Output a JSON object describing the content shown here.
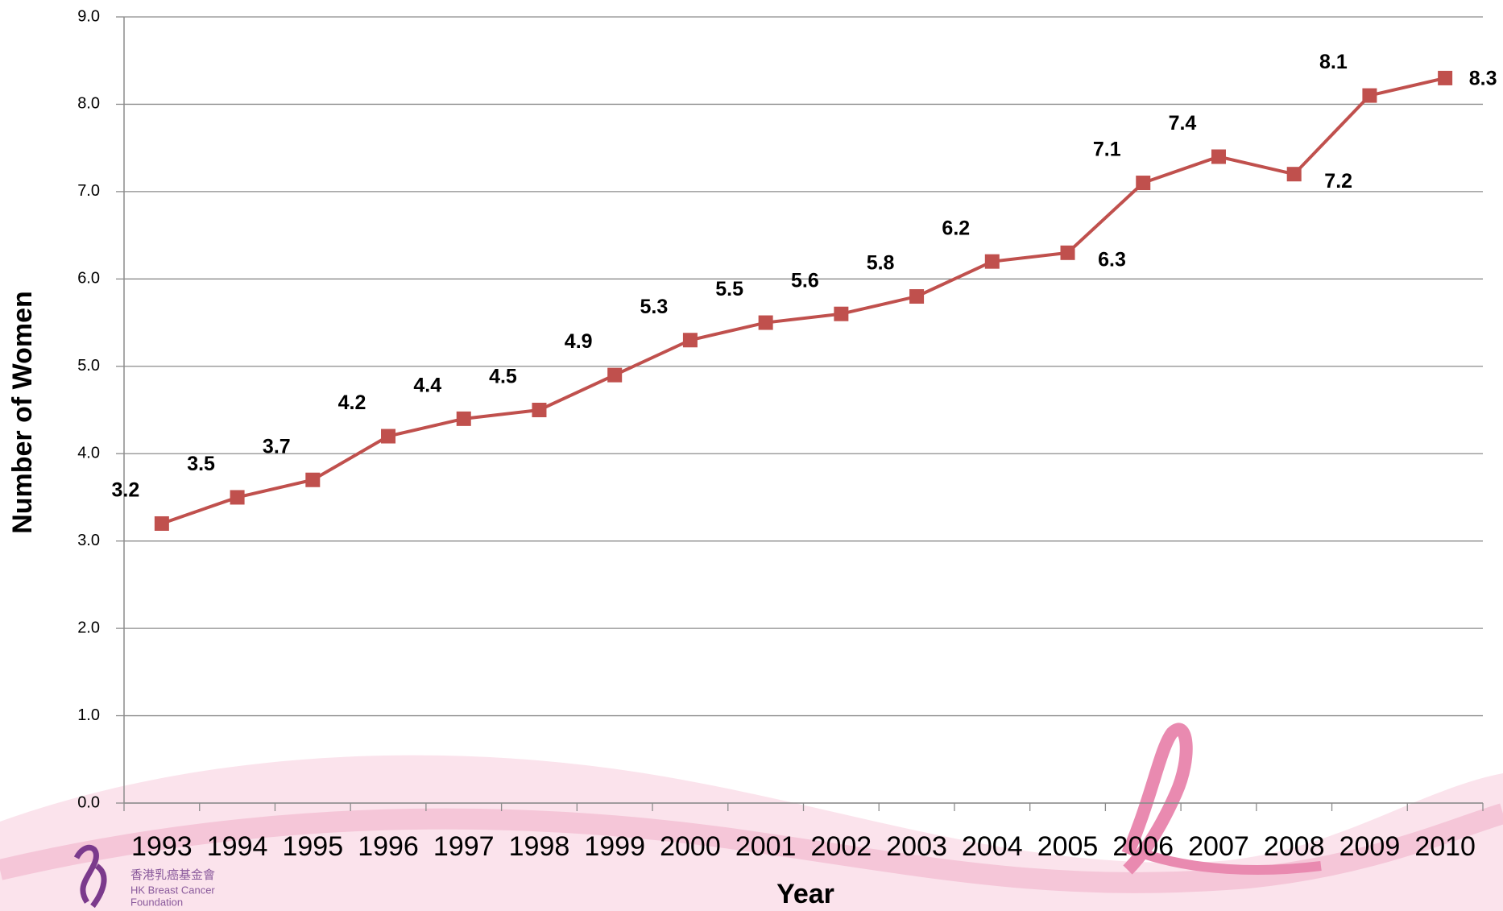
{
  "chart_data": {
    "type": "line",
    "x_label": "Year",
    "y_label": "Number of Women",
    "categories": [
      "1993",
      "1994",
      "1995",
      "1996",
      "1997",
      "1998",
      "1999",
      "2000",
      "2001",
      "2002",
      "2003",
      "2004",
      "2005",
      "2006",
      "2007",
      "2008",
      "2009",
      "2010"
    ],
    "series": [
      {
        "name": "Number of Women",
        "color": "#c0504d",
        "values": [
          3.2,
          3.5,
          3.7,
          4.2,
          4.4,
          4.5,
          4.9,
          5.3,
          5.5,
          5.6,
          5.8,
          6.2,
          6.3,
          7.1,
          7.4,
          7.2,
          8.1,
          8.3
        ]
      }
    ],
    "ylim": [
      0,
      9
    ],
    "yticks": [
      {
        "value": 0,
        "label": "0.0"
      },
      {
        "value": 1,
        "label": "1.0"
      },
      {
        "value": 2,
        "label": "2.0"
      },
      {
        "value": 3,
        "label": "3.0"
      },
      {
        "value": 4,
        "label": "4.0"
      },
      {
        "value": 5,
        "label": "5.0"
      },
      {
        "value": 6,
        "label": "6.0"
      },
      {
        "value": 7,
        "label": "7.0"
      },
      {
        "value": 8,
        "label": "8.0"
      },
      {
        "value": 9,
        "label": "9.0"
      }
    ],
    "grid": true
  },
  "logo": {
    "name_zh": "香港乳癌基金會",
    "name_en": [
      "HK Breast Cancer",
      "Foundation"
    ]
  }
}
